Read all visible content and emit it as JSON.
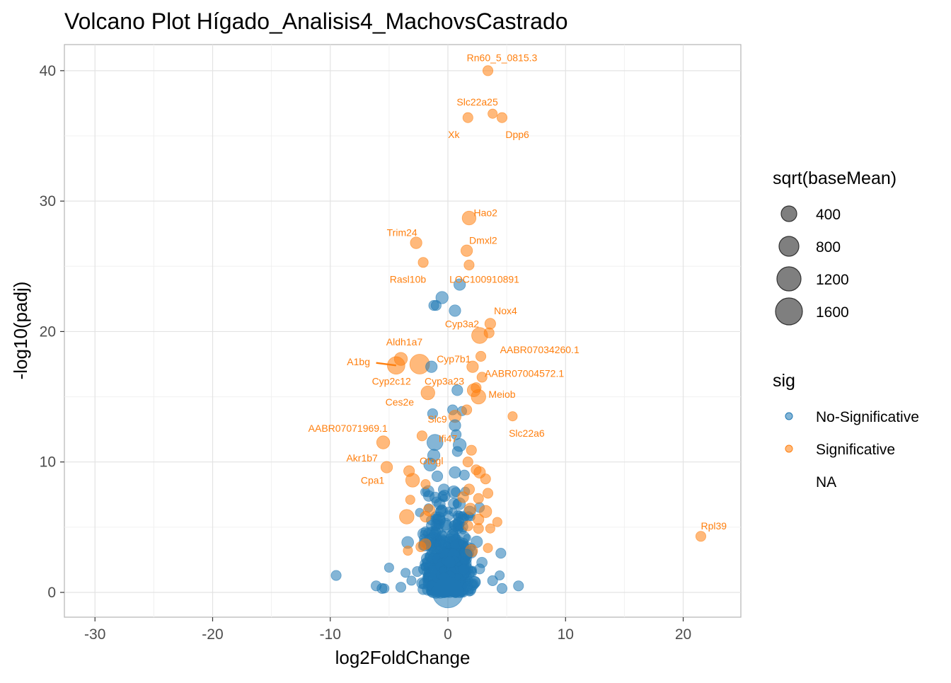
{
  "title": "Volcano Plot Hígado_Analisis4_MachovsCastrado",
  "chart_data": {
    "type": "scatter",
    "title": "Volcano Plot Hígado_Analisis4_MachovsCastrado",
    "xlabel": "log2FoldChange",
    "ylabel": "-log10(padj)",
    "xlim": [
      -32.6,
      24.9
    ],
    "ylim": [
      -1.9,
      42
    ],
    "x_ticks": [
      -30,
      -20,
      -10,
      0,
      10,
      20
    ],
    "y_ticks": [
      0,
      10,
      20,
      30,
      40
    ],
    "grid": true,
    "colors": {
      "No-Significative": "#1f78b4",
      "Significative": "#ff7f0e"
    },
    "size_legend": {
      "title": "sqrt(baseMean)",
      "entries": [
        {
          "label": "400",
          "value": 400
        },
        {
          "label": "800",
          "value": 800
        },
        {
          "label": "1200",
          "value": 1200
        },
        {
          "label": "1600",
          "value": 1600
        }
      ]
    },
    "color_legend": {
      "title": "sig",
      "entries": [
        "No-Significative",
        "Significative",
        "NA"
      ]
    },
    "labels": [
      {
        "text": "Rn60_5_0815.3",
        "x": 4.6,
        "y": 41.0
      },
      {
        "text": "Slc22a25",
        "x": 2.5,
        "y": 37.6
      },
      {
        "text": "Xk",
        "x": 0.5,
        "y": 35.1
      },
      {
        "text": "Dpp6",
        "x": 5.9,
        "y": 35.1
      },
      {
        "text": "Hao2",
        "x": 3.2,
        "y": 29.1
      },
      {
        "text": "Trim24",
        "x": -3.9,
        "y": 27.6
      },
      {
        "text": "Dmxl2",
        "x": 3.0,
        "y": 27.0
      },
      {
        "text": "Rasl10b",
        "x": -3.4,
        "y": 24.0
      },
      {
        "text": "LOC100910891",
        "x": 3.1,
        "y": 24.0
      },
      {
        "text": "Nox4",
        "x": 4.9,
        "y": 21.6
      },
      {
        "text": "Cyp3a2",
        "x": 1.2,
        "y": 20.6
      },
      {
        "text": "Aldh1a7",
        "x": -3.7,
        "y": 19.2
      },
      {
        "text": "AABR07034260.1",
        "x": 7.8,
        "y": 18.6
      },
      {
        "text": "Cyp7b1",
        "x": 0.5,
        "y": 17.9
      },
      {
        "text": "A1bg",
        "x": -7.6,
        "y": 17.7
      },
      {
        "text": "AABR07004572.1",
        "x": 6.5,
        "y": 16.8
      },
      {
        "text": "Cyp2c12",
        "x": -4.8,
        "y": 16.2
      },
      {
        "text": "Cyp3a23",
        "x": -0.3,
        "y": 16.2
      },
      {
        "text": "Meiob",
        "x": 4.6,
        "y": 15.2
      },
      {
        "text": "Ces2e",
        "x": -4.1,
        "y": 14.6
      },
      {
        "text": "Slc9",
        "x": -0.9,
        "y": 13.3
      },
      {
        "text": "AABR07071969.1",
        "x": -8.5,
        "y": 12.6
      },
      {
        "text": "Slc22a6",
        "x": 6.7,
        "y": 12.2
      },
      {
        "text": "Ifi47",
        "x": 0.0,
        "y": 11.8
      },
      {
        "text": "Akr1b7",
        "x": -7.3,
        "y": 10.3
      },
      {
        "text": "Otogl",
        "x": -1.4,
        "y": 10.1
      },
      {
        "text": "Cpa1",
        "x": -6.4,
        "y": 8.6
      },
      {
        "text": "Rpl39",
        "x": 22.6,
        "y": 5.1
      }
    ],
    "label_segments": [
      {
        "from": [
          -6.1,
          17.6
        ],
        "to": [
          -4.4,
          17.4
        ]
      }
    ],
    "points": [
      {
        "x": 3.4,
        "y": 40.0,
        "sig": "Significative",
        "size": 300
      },
      {
        "x": 1.7,
        "y": 36.4,
        "sig": "Significative",
        "size": 300
      },
      {
        "x": 3.8,
        "y": 36.7,
        "sig": "Significative",
        "size": 250
      },
      {
        "x": 4.6,
        "y": 36.4,
        "sig": "Significative",
        "size": 300
      },
      {
        "x": 1.8,
        "y": 28.7,
        "sig": "Significative",
        "size": 550
      },
      {
        "x": -2.7,
        "y": 26.8,
        "sig": "Significative",
        "size": 400
      },
      {
        "x": 1.6,
        "y": 26.2,
        "sig": "Significative",
        "size": 400
      },
      {
        "x": -2.1,
        "y": 25.3,
        "sig": "Significative",
        "size": 300
      },
      {
        "x": 1.8,
        "y": 25.1,
        "sig": "Significative",
        "size": 300
      },
      {
        "x": 1.0,
        "y": 23.6,
        "sig": "No-Significative",
        "size": 400
      },
      {
        "x": -0.5,
        "y": 22.6,
        "sig": "No-Significative",
        "size": 450
      },
      {
        "x": -1.0,
        "y": 22.0,
        "sig": "No-Significative",
        "size": 300
      },
      {
        "x": -1.2,
        "y": 22.0,
        "sig": "No-Significative",
        "size": 300
      },
      {
        "x": 0.6,
        "y": 21.6,
        "sig": "No-Significative",
        "size": 400
      },
      {
        "x": 3.6,
        "y": 20.6,
        "sig": "Significative",
        "size": 350
      },
      {
        "x": 3.5,
        "y": 19.9,
        "sig": "Significative",
        "size": 300
      },
      {
        "x": 2.7,
        "y": 19.7,
        "sig": "Significative",
        "size": 700
      },
      {
        "x": -4.0,
        "y": 17.9,
        "sig": "Significative",
        "size": 500
      },
      {
        "x": 2.8,
        "y": 18.1,
        "sig": "Significative",
        "size": 300
      },
      {
        "x": -4.4,
        "y": 17.4,
        "sig": "Significative",
        "size": 800
      },
      {
        "x": -2.4,
        "y": 17.5,
        "sig": "Significative",
        "size": 950
      },
      {
        "x": -1.4,
        "y": 17.3,
        "sig": "No-Significative",
        "size": 400
      },
      {
        "x": 2.1,
        "y": 17.3,
        "sig": "Significative",
        "size": 400
      },
      {
        "x": 2.9,
        "y": 16.5,
        "sig": "Significative",
        "size": 300
      },
      {
        "x": -1.7,
        "y": 15.3,
        "sig": "Significative",
        "size": 550
      },
      {
        "x": 0.8,
        "y": 15.5,
        "sig": "No-Significative",
        "size": 350
      },
      {
        "x": 2.2,
        "y": 15.5,
        "sig": "Significative",
        "size": 500
      },
      {
        "x": 2.6,
        "y": 15.0,
        "sig": "Significative",
        "size": 600
      },
      {
        "x": 2.4,
        "y": 15.7,
        "sig": "Significative",
        "size": 300
      },
      {
        "x": 0.4,
        "y": 14.0,
        "sig": "No-Significative",
        "size": 300
      },
      {
        "x": 1.2,
        "y": 13.9,
        "sig": "No-Significative",
        "size": 250
      },
      {
        "x": 1.6,
        "y": 14.0,
        "sig": "Significative",
        "size": 300
      },
      {
        "x": -1.3,
        "y": 13.7,
        "sig": "No-Significative",
        "size": 300
      },
      {
        "x": 0.6,
        "y": 13.5,
        "sig": "Significative",
        "size": 450
      },
      {
        "x": 5.5,
        "y": 13.5,
        "sig": "Significative",
        "size": 250
      },
      {
        "x": 0.6,
        "y": 12.8,
        "sig": "No-Significative",
        "size": 400
      },
      {
        "x": 0.7,
        "y": 12.1,
        "sig": "No-Significative",
        "size": 300
      },
      {
        "x": -2.2,
        "y": 12.0,
        "sig": "Significative",
        "size": 300
      },
      {
        "x": -1.1,
        "y": 11.5,
        "sig": "No-Significative",
        "size": 700
      },
      {
        "x": 1.0,
        "y": 11.3,
        "sig": "No-Significative",
        "size": 500
      },
      {
        "x": -5.5,
        "y": 11.5,
        "sig": "Significative",
        "size": 500
      },
      {
        "x": -1.2,
        "y": 10.5,
        "sig": "No-Significative",
        "size": 450
      },
      {
        "x": 2.0,
        "y": 10.9,
        "sig": "Significative",
        "size": 300
      },
      {
        "x": 0.8,
        "y": 10.8,
        "sig": "No-Significative",
        "size": 300
      },
      {
        "x": -1.5,
        "y": 9.8,
        "sig": "No-Significative",
        "size": 500
      },
      {
        "x": -5.2,
        "y": 9.6,
        "sig": "Significative",
        "size": 400
      },
      {
        "x": -3.3,
        "y": 9.3,
        "sig": "Significative",
        "size": 350
      },
      {
        "x": 1.7,
        "y": 10.0,
        "sig": "Significative",
        "size": 300
      },
      {
        "x": 2.4,
        "y": 9.4,
        "sig": "Significative",
        "size": 300
      },
      {
        "x": 0.6,
        "y": 9.2,
        "sig": "No-Significative",
        "size": 400
      },
      {
        "x": 1.4,
        "y": 9.0,
        "sig": "No-Significative",
        "size": 300
      },
      {
        "x": 2.7,
        "y": 9.2,
        "sig": "Significative",
        "size": 400
      },
      {
        "x": 3.2,
        "y": 8.7,
        "sig": "Significative",
        "size": 300
      },
      {
        "x": -3.0,
        "y": 8.6,
        "sig": "Significative",
        "size": 550
      },
      {
        "x": -0.9,
        "y": 8.9,
        "sig": "No-Significative",
        "size": 350
      },
      {
        "x": -1.9,
        "y": 8.3,
        "sig": "Significative",
        "size": 250
      },
      {
        "x": 1.8,
        "y": 7.9,
        "sig": "Significative",
        "size": 350
      },
      {
        "x": 0.5,
        "y": 7.7,
        "sig": "No-Significative",
        "size": 450
      },
      {
        "x": 3.4,
        "y": 7.6,
        "sig": "Significative",
        "size": 300
      },
      {
        "x": 1.3,
        "y": 7.3,
        "sig": "Significative",
        "size": 350
      },
      {
        "x": -0.3,
        "y": 7.4,
        "sig": "No-Significative",
        "size": 400
      },
      {
        "x": -3.2,
        "y": 7.1,
        "sig": "Significative",
        "size": 250
      },
      {
        "x": 2.6,
        "y": 7.2,
        "sig": "Significative",
        "size": 300
      },
      {
        "x": 1.9,
        "y": 6.4,
        "sig": "Significative",
        "size": 400
      },
      {
        "x": 3.2,
        "y": 6.2,
        "sig": "Significative",
        "size": 450
      },
      {
        "x": -1.6,
        "y": 6.3,
        "sig": "Significative",
        "size": 400
      },
      {
        "x": -1.9,
        "y": 5.8,
        "sig": "Significative",
        "size": 350
      },
      {
        "x": -3.5,
        "y": 5.8,
        "sig": "Significative",
        "size": 600
      },
      {
        "x": 2.6,
        "y": 5.6,
        "sig": "Significative",
        "size": 350
      },
      {
        "x": 4.2,
        "y": 5.4,
        "sig": "Significative",
        "size": 250
      },
      {
        "x": 1.7,
        "y": 5.1,
        "sig": "Significative",
        "size": 300
      },
      {
        "x": 2.6,
        "y": 4.9,
        "sig": "Significative",
        "size": 300
      },
      {
        "x": 3.6,
        "y": 4.9,
        "sig": "Significative",
        "size": 250
      },
      {
        "x": -1.9,
        "y": 3.7,
        "sig": "Significative",
        "size": 350
      },
      {
        "x": -2.3,
        "y": 3.5,
        "sig": "Significative",
        "size": 300
      },
      {
        "x": 3.4,
        "y": 3.4,
        "sig": "Significative",
        "size": 250
      },
      {
        "x": 2.0,
        "y": 3.2,
        "sig": "Significative",
        "size": 450
      },
      {
        "x": -3.4,
        "y": 3.2,
        "sig": "Significative",
        "size": 250
      },
      {
        "x": 4.5,
        "y": 3.0,
        "sig": "No-Significative",
        "size": 300
      },
      {
        "x": 21.5,
        "y": 4.3,
        "sig": "Significative",
        "size": 300
      },
      {
        "x": -9.5,
        "y": 1.3,
        "sig": "No-Significative",
        "size": 300
      },
      {
        "x": -5.0,
        "y": 1.9,
        "sig": "No-Significative",
        "size": 250
      },
      {
        "x": -3.6,
        "y": 1.5,
        "sig": "No-Significative",
        "size": 250
      },
      {
        "x": -6.1,
        "y": 0.5,
        "sig": "No-Significative",
        "size": 300
      },
      {
        "x": -5.6,
        "y": 0.3,
        "sig": "No-Significative",
        "size": 300
      },
      {
        "x": -5.4,
        "y": 0.3,
        "sig": "No-Significative",
        "size": 250
      },
      {
        "x": -4.0,
        "y": 0.4,
        "sig": "No-Significative",
        "size": 300
      },
      {
        "x": -3.1,
        "y": 0.9,
        "sig": "No-Significative",
        "size": 250
      },
      {
        "x": 4.4,
        "y": 1.3,
        "sig": "No-Significative",
        "size": 250
      },
      {
        "x": 3.8,
        "y": 0.9,
        "sig": "No-Significative",
        "size": 300
      },
      {
        "x": 4.6,
        "y": 0.3,
        "sig": "No-Significative",
        "size": 300
      },
      {
        "x": 6.0,
        "y": 0.5,
        "sig": "No-Significative",
        "size": 300
      },
      {
        "x": 0.0,
        "y": 0.0,
        "sig": "No-Significative",
        "size": 1700
      },
      {
        "x": -1.8,
        "y": 2.6,
        "sig": "No-Significative",
        "size": 350
      },
      {
        "x": 1.6,
        "y": 2.9,
        "sig": "No-Significative",
        "size": 350
      },
      {
        "x": -0.9,
        "y": 4.8,
        "sig": "No-Significative",
        "size": 400
      },
      {
        "x": 0.9,
        "y": 5.3,
        "sig": "No-Significative",
        "size": 400
      },
      {
        "x": -0.6,
        "y": 6.2,
        "sig": "No-Significative",
        "size": 350
      },
      {
        "x": 0.5,
        "y": 6.8,
        "sig": "No-Significative",
        "size": 350
      },
      {
        "x": -0.4,
        "y": 3.9,
        "sig": "No-Significative",
        "size": 400
      },
      {
        "x": 0.4,
        "y": 4.4,
        "sig": "No-Significative",
        "size": 400
      },
      {
        "x": 2.7,
        "y": 1.8,
        "sig": "No-Significative",
        "size": 300
      },
      {
        "x": -2.6,
        "y": 1.6,
        "sig": "No-Significative",
        "size": 300
      },
      {
        "x": 2.3,
        "y": 0.8,
        "sig": "No-Significative",
        "size": 350
      },
      {
        "x": -2.2,
        "y": 0.7,
        "sig": "No-Significative",
        "size": 350
      }
    ]
  }
}
